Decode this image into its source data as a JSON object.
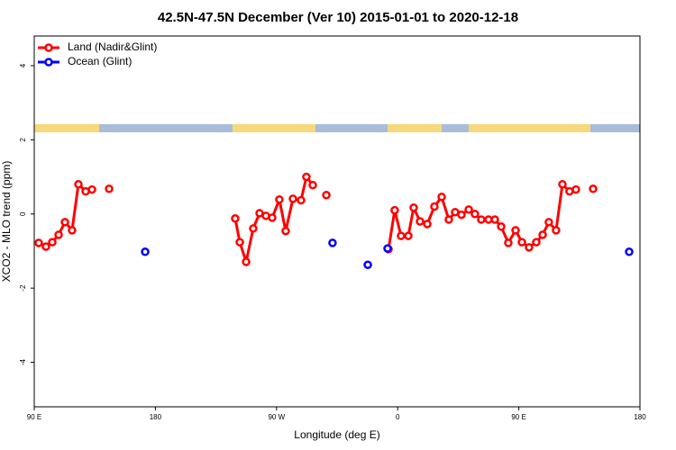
{
  "chart_data": {
    "type": "line",
    "title": "42.5N-47.5N December (Ver 10)   2015-01-01 to 2020-12-18",
    "x_label": "Longitude (deg E)",
    "y_label": "XCO2 - MLO trend (ppm)",
    "xlim": [
      90,
      540
    ],
    "ylim": [
      -5.2,
      4.8
    ],
    "xticks": [
      {
        "value": 90,
        "label": "90 E"
      },
      180,
      {
        "value": 270,
        "label": "90 W"
      },
      {
        "value": 360,
        "label": "0"
      },
      {
        "value": 450,
        "label": "90 E"
      },
      {
        "value": 540,
        "label": "180"
      }
    ],
    "yticks": [
      -4,
      -2,
      0,
      2,
      4
    ],
    "legend": "top-left",
    "series": [
      {
        "name": "Land (Nadir&Glint)",
        "color": "#ff0000",
        "lines": true,
        "x": [
          93.3,
          98.7,
          103.4,
          108.1,
          112.8,
          118.1,
          122.8,
          128.2,
          132.9,
          null,
          145.6,
          null,
          239.3,
          242.7,
          247.4,
          252.7,
          257.4,
          262.1,
          266.8,
          272.1,
          276.8,
          282.2,
          288.2,
          292.2,
          296.9,
          null,
          307.0,
          null,
          353.2,
          357.8,
          362.5,
          367.9,
          371.9,
          376.6,
          382.0,
          387.3,
          392.7,
          398.0,
          402.7,
          407.4,
          412.8,
          417.4,
          422.1,
          427.5,
          432.2,
          436.9,
          442.2,
          447.6,
          452.3,
          457.6,
          463.0,
          467.7,
          472.3,
          477.7,
          482.4,
          487.7,
          492.4,
          null,
          505.2
        ],
        "values": [
          -0.78,
          -0.88,
          -0.76,
          -0.56,
          -0.22,
          -0.44,
          0.8,
          0.61,
          0.66,
          null,
          0.68,
          null,
          -0.12,
          -0.76,
          -1.29,
          -0.39,
          0.02,
          -0.05,
          -0.1,
          0.39,
          -0.46,
          0.41,
          0.37,
          1.0,
          0.78,
          null,
          0.51,
          null,
          -0.95,
          0.1,
          -0.59,
          -0.59,
          0.17,
          -0.2,
          -0.27,
          0.2,
          0.46,
          -0.15,
          0.05,
          -0.02,
          0.12,
          0,
          -0.15,
          -0.15,
          -0.15,
          -0.34,
          -0.78,
          -0.44,
          -0.76,
          -0.9,
          -0.76,
          -0.56,
          -0.22,
          -0.44,
          0.8,
          0.61,
          0.66,
          null,
          0.68
        ]
      },
      {
        "name": "Ocean (Glint)",
        "color": "#0000ff",
        "lines": false,
        "x": [
          172.4,
          311.6,
          337.8,
          352.5,
          532.0
        ],
        "values": [
          -1.02,
          -0.78,
          -1.37,
          -0.93,
          -1.02
        ]
      }
    ]
  }
}
